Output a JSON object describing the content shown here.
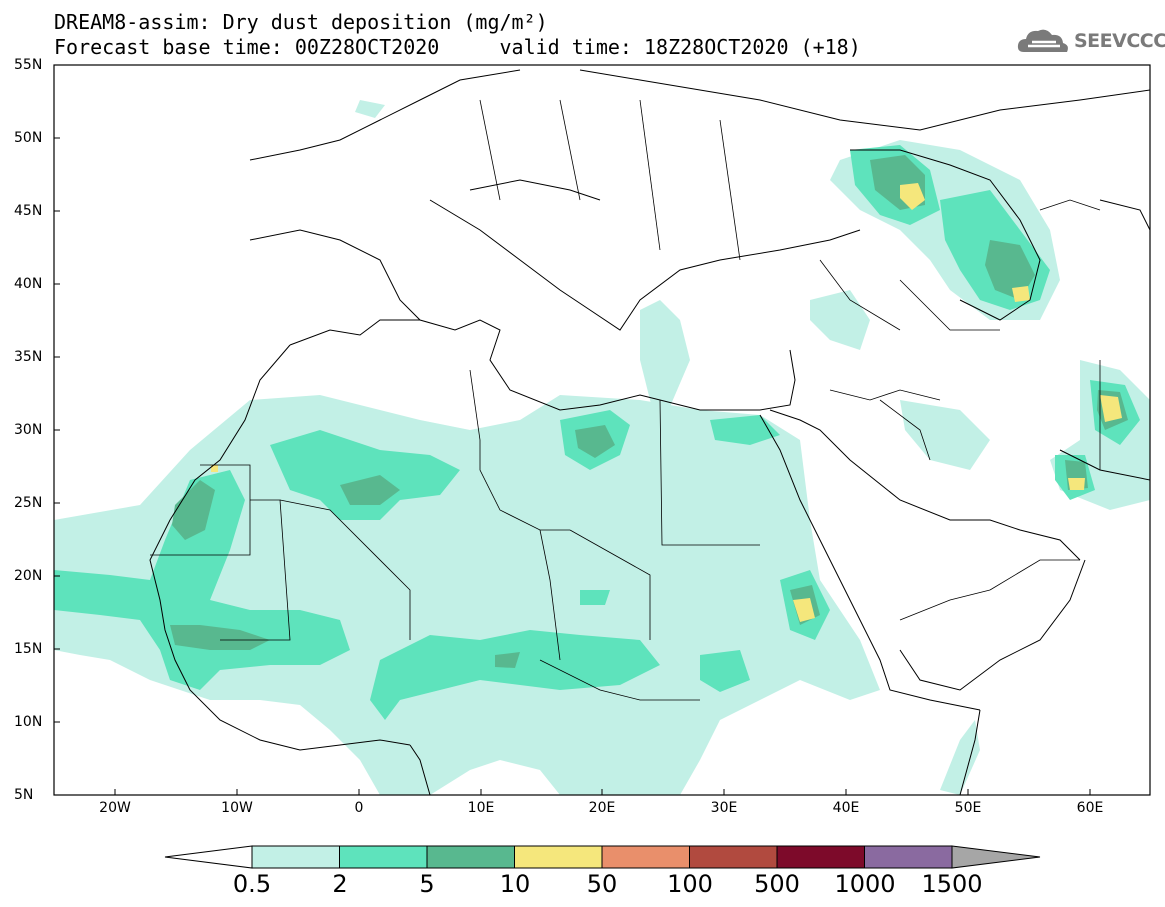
{
  "title": {
    "line1": "DREAM8-assim: Dry dust deposition (mg/m²)",
    "line2": "Forecast base time: 00Z28OCT2020     valid time: 18Z28OCT2020 (+18)"
  },
  "logo": {
    "text": "SEEVCCC",
    "icon": "cloud-icon"
  },
  "map": {
    "lon_range": [
      -25,
      65
    ],
    "lat_range": [
      5,
      55
    ],
    "lat_labels": [
      "55N",
      "50N",
      "45N",
      "40N",
      "35N",
      "30N",
      "25N",
      "20N",
      "15N",
      "10N",
      "5N"
    ],
    "lon_labels": [
      "20W",
      "10W",
      "0",
      "10E",
      "20E",
      "30E",
      "40E",
      "50E",
      "60E"
    ]
  },
  "colorbar": {
    "labels": [
      "0.5",
      "2",
      "5",
      "10",
      "50",
      "100",
      "500",
      "1000",
      "1500"
    ],
    "colors": [
      "#c2f0e6",
      "#5ee3bc",
      "#58b88f",
      "#f5e77c",
      "#e98f6b",
      "#b14a3f",
      "#7d0a2a",
      "#8a6aa0"
    ],
    "under_color": "#ffffff",
    "over_color": "#a6a6a6"
  }
}
